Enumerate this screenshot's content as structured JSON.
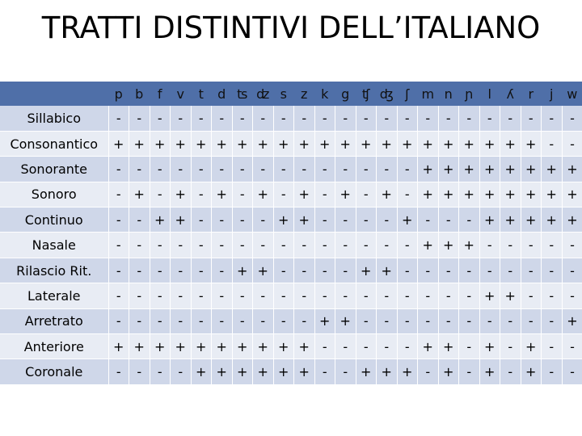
{
  "title": "TRATTI DISTINTIVI DELL’ITALIANO",
  "table": {
    "columns": [
      "p",
      "b",
      "f",
      "v",
      "t",
      "d",
      "ʦ",
      "ʣ",
      "s",
      "z",
      "k",
      "g",
      "ʧ",
      "ʤ",
      "ʃ",
      "m",
      "n",
      "ɲ",
      "l",
      "ʎ",
      "r",
      "j",
      "w"
    ],
    "rows": [
      {
        "label": "Sillabico",
        "values": [
          "-",
          "-",
          "-",
          "-",
          "-",
          "-",
          "-",
          "-",
          "-",
          "-",
          "-",
          "-",
          "-",
          "-",
          "-",
          "-",
          "-",
          "-",
          "-",
          "-",
          "-",
          "-",
          "-"
        ]
      },
      {
        "label": "Consonantico",
        "values": [
          "+",
          "+",
          "+",
          "+",
          "+",
          "+",
          "+",
          "+",
          "+",
          "+",
          "+",
          "+",
          "+",
          "+",
          "+",
          "+",
          "+",
          "+",
          "+",
          "+",
          "+",
          "-",
          "-"
        ]
      },
      {
        "label": "Sonorante",
        "values": [
          "-",
          "-",
          "-",
          "-",
          "-",
          "-",
          "-",
          "-",
          "-",
          "-",
          "-",
          "-",
          "-",
          "-",
          "-",
          "+",
          "+",
          "+",
          "+",
          "+",
          "+",
          "+",
          "+"
        ]
      },
      {
        "label": "Sonoro",
        "values": [
          "-",
          "+",
          "-",
          "+",
          "-",
          "+",
          "-",
          "+",
          "-",
          "+",
          "-",
          "+",
          "-",
          "+",
          "-",
          "+",
          "+",
          "+",
          "+",
          "+",
          "+",
          "+",
          "+"
        ]
      },
      {
        "label": "Continuo",
        "values": [
          "-",
          "-",
          "+",
          "+",
          "-",
          "-",
          "-",
          "-",
          "+",
          "+",
          "-",
          "-",
          "-",
          "-",
          "+",
          "-",
          "-",
          "-",
          "+",
          "+",
          "+",
          "+",
          "+"
        ]
      },
      {
        "label": "Nasale",
        "values": [
          "-",
          "-",
          "-",
          "-",
          "-",
          "-",
          "-",
          "-",
          "-",
          "-",
          "-",
          "-",
          "-",
          "-",
          "-",
          "+",
          "+",
          "+",
          "-",
          "-",
          "-",
          "-",
          "-"
        ]
      },
      {
        "label": "Rilascio Rit.",
        "values": [
          "-",
          "-",
          "-",
          "-",
          "-",
          "-",
          "+",
          "+",
          "-",
          "-",
          "-",
          "-",
          "+",
          "+",
          "-",
          "-",
          "-",
          "-",
          "-",
          "-",
          "-",
          "-",
          "-"
        ]
      },
      {
        "label": "Laterale",
        "values": [
          "-",
          "-",
          "-",
          "-",
          "-",
          "-",
          "-",
          "-",
          "-",
          "-",
          "-",
          "-",
          "-",
          "-",
          "-",
          "-",
          "-",
          "-",
          "+",
          "+",
          "-",
          "-",
          "-"
        ]
      },
      {
        "label": "Arretrato",
        "values": [
          "-",
          "-",
          "-",
          "-",
          "-",
          "-",
          "-",
          "-",
          "-",
          "-",
          "+",
          "+",
          "-",
          "-",
          "-",
          "-",
          "-",
          "-",
          "-",
          "-",
          "-",
          "-",
          "+"
        ]
      },
      {
        "label": "Anteriore",
        "values": [
          "+",
          "+",
          "+",
          "+",
          "+",
          "+",
          "+",
          "+",
          "+",
          "+",
          "-",
          "-",
          "-",
          "-",
          "-",
          "+",
          "+",
          "-",
          "+",
          "-",
          "+",
          "-",
          "-"
        ]
      },
      {
        "label": "Coronale",
        "values": [
          "-",
          "-",
          "-",
          "-",
          "+",
          "+",
          "+",
          "+",
          "+",
          "+",
          "-",
          "-",
          "+",
          "+",
          "+",
          "-",
          "+",
          "-",
          "+",
          "-",
          "+",
          "-",
          "-"
        ]
      }
    ]
  }
}
